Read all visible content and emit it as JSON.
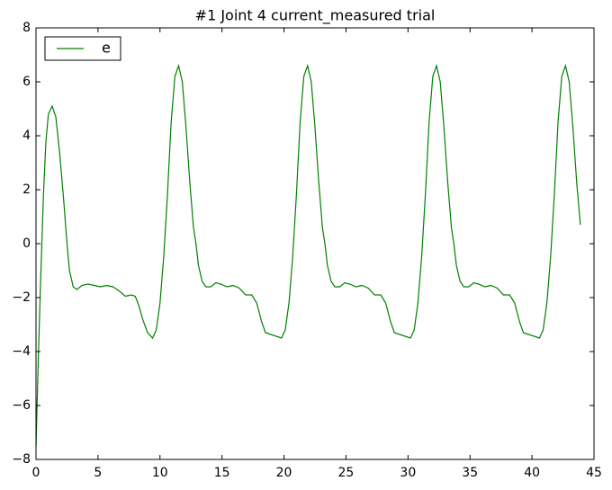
{
  "chart_data": {
    "type": "line",
    "title": "#1 Joint 4 current_measured trial",
    "x": [
      0,
      0.2,
      0.4,
      0.6,
      0.8,
      1.0,
      1.3,
      1.6,
      1.9,
      2.2,
      2.4,
      2.5,
      2.7,
      3.0,
      3.3,
      3.7,
      4.2,
      4.7,
      5.2,
      5.7,
      6.2,
      6.7,
      7.2,
      7.7,
      8.0,
      8.3,
      8.6,
      9.0,
      9.4,
      9.7,
      10.0,
      10.3,
      10.6,
      10.9,
      11.2,
      11.5,
      11.8,
      12.1,
      12.4,
      12.7,
      12.9,
      13.1,
      13.4,
      13.7,
      14.1,
      14.5,
      14.9,
      15.4,
      15.9,
      16.4,
      16.9,
      17.4,
      17.8,
      18.2,
      18.5,
      19.8,
      20.1,
      20.4,
      20.7,
      21.0,
      21.3,
      21.6,
      21.9,
      22.2,
      22.5,
      22.8,
      23.1,
      23.3,
      23.5,
      23.8,
      24.1,
      24.5,
      24.9,
      25.3,
      25.8,
      26.3,
      26.8,
      27.3,
      27.8,
      28.2,
      28.6,
      28.9,
      30.2,
      30.5,
      30.8,
      31.1,
      31.4,
      31.7,
      32.0,
      32.3,
      32.6,
      32.9,
      33.2,
      33.5,
      33.7,
      33.9,
      34.2,
      34.5,
      34.9,
      35.3,
      35.7,
      36.2,
      36.7,
      37.2,
      37.7,
      38.2,
      38.6,
      39.0,
      39.3,
      40.6,
      40.9,
      41.2,
      41.5,
      41.8,
      42.1,
      42.4,
      42.7,
      43.0,
      43.3,
      43.6,
      43.9
    ],
    "series": [
      {
        "name": "e",
        "color": "#008000",
        "values": [
          -7.5,
          -4,
          -1,
          1.8,
          3.8,
          4.8,
          5.1,
          4.7,
          3.4,
          1.8,
          0.6,
          0,
          -1.0,
          -1.6,
          -1.7,
          -1.55,
          -1.5,
          -1.55,
          -1.6,
          -1.55,
          -1.6,
          -1.75,
          -1.95,
          -1.9,
          -1.95,
          -2.3,
          -2.8,
          -3.3,
          -3.5,
          -3.2,
          -2.2,
          -0.5,
          1.8,
          4.5,
          6.2,
          6.6,
          6.0,
          4.3,
          2.3,
          0.6,
          0,
          -0.8,
          -1.4,
          -1.6,
          -1.6,
          -1.45,
          -1.5,
          -1.6,
          -1.55,
          -1.65,
          -1.9,
          -1.9,
          -2.2,
          -2.9,
          -3.3,
          -3.5,
          -3.2,
          -2.2,
          -0.5,
          1.8,
          4.5,
          6.2,
          6.6,
          6.0,
          4.3,
          2.3,
          0.6,
          0,
          -0.8,
          -1.4,
          -1.6,
          -1.6,
          -1.45,
          -1.5,
          -1.6,
          -1.55,
          -1.65,
          -1.9,
          -1.9,
          -2.2,
          -2.9,
          -3.3,
          -3.5,
          -3.2,
          -2.2,
          -0.5,
          1.8,
          4.5,
          6.2,
          6.6,
          6.0,
          4.3,
          2.3,
          0.6,
          0,
          -0.8,
          -1.4,
          -1.6,
          -1.6,
          -1.45,
          -1.5,
          -1.6,
          -1.55,
          -1.65,
          -1.9,
          -1.9,
          -2.2,
          -2.9,
          -3.3,
          -3.5,
          -3.2,
          -2.2,
          -0.5,
          1.8,
          4.5,
          6.2,
          6.6,
          6.0,
          4.3,
          2.3,
          0.7
        ]
      }
    ],
    "xlim": [
      0,
      45
    ],
    "xticks": [
      0,
      5,
      10,
      15,
      20,
      25,
      30,
      35,
      40,
      45
    ],
    "ylim": [
      -8,
      8
    ],
    "yticks": [
      {
        "value": -8,
        "label": "−8"
      },
      {
        "value": -6,
        "label": "−6"
      },
      {
        "value": -4,
        "label": "−4"
      },
      {
        "value": -2,
        "label": "−2"
      },
      0,
      2,
      4,
      6,
      8
    ],
    "legend": "upper left"
  }
}
